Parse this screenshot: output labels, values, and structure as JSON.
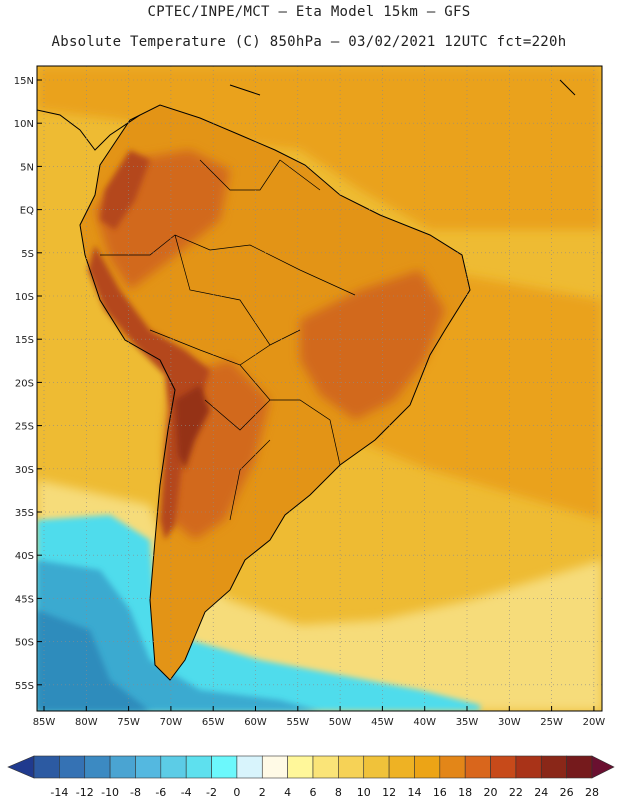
{
  "header": {
    "line1": "CPTEC/INPE/MCT –  Eta Model 15km – GFS",
    "line2": "Absolute Temperature (C) 850hPa – 03/02/2021 12UTC fct=220h"
  },
  "map": {
    "lat_labels": [
      "15N",
      "10N",
      "5N",
      "EQ",
      "5S",
      "10S",
      "15S",
      "20S",
      "25S",
      "30S",
      "35S",
      "40S",
      "45S",
      "50S",
      "55S"
    ],
    "lon_labels": [
      "85W",
      "80W",
      "75W",
      "70W",
      "65W",
      "60W",
      "55W",
      "50W",
      "45W",
      "40W",
      "35W",
      "30W",
      "25W",
      "20W"
    ],
    "colors": {
      "ocean_warm": "#eebb33",
      "ocean_hot": "#eaa21a",
      "land": "#e39416",
      "land_hot": "#d2691c",
      "mountains": "#b4461a",
      "peaks": "#953218",
      "south_pale": "#f6dc7a",
      "coldwater": "#4fdcec",
      "cold": "#3aaad0",
      "colder": "#2d8cbc"
    }
  },
  "colorbar": {
    "labels": [
      "-14",
      "-12",
      "-10",
      "-8",
      "-6",
      "-4",
      "-2",
      "0",
      "2",
      "4",
      "6",
      "8",
      "10",
      "12",
      "14",
      "16",
      "18",
      "20",
      "22",
      "24",
      "26",
      "28"
    ],
    "colors": [
      "#203a8e",
      "#2c5aa2",
      "#3572b4",
      "#3c8ac2",
      "#4aa4d2",
      "#54b8e0",
      "#5ccce6",
      "#5ee0ee",
      "#6cf8fc",
      "#d8f4fc",
      "#fffae6",
      "#fff79a",
      "#fae478",
      "#f6d256",
      "#f0c23a",
      "#eeb224",
      "#eca416",
      "#e38618",
      "#d9661c",
      "#c74a1a",
      "#a93318",
      "#8a2718",
      "#751a1c",
      "#6a1030"
    ]
  }
}
